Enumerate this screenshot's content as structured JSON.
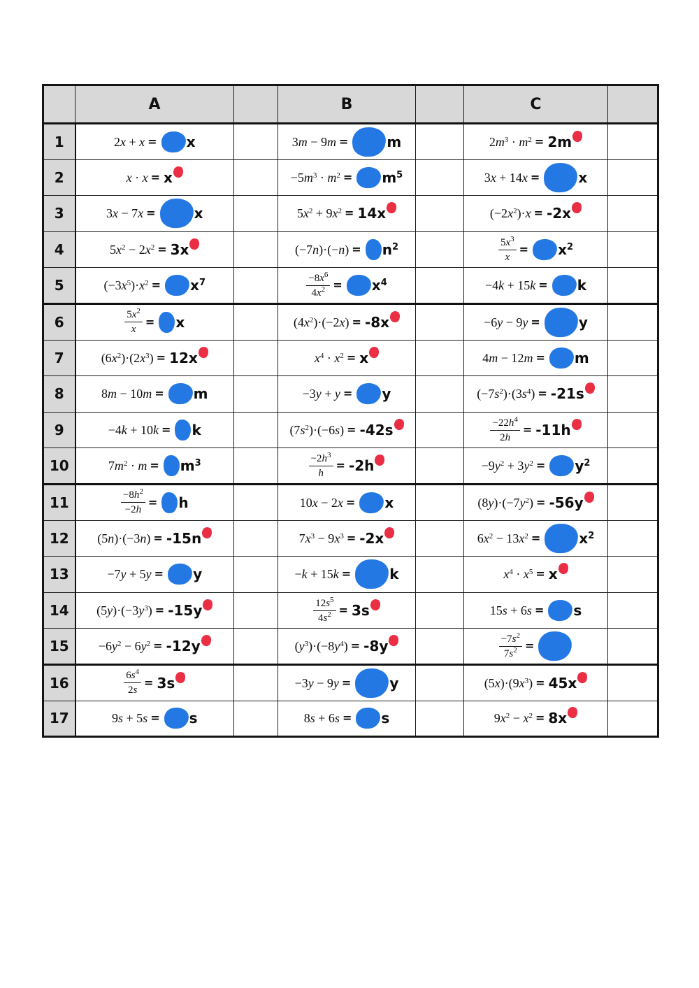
{
  "symbols": {
    "equals": "="
  },
  "colors": {
    "blob_blue": "#2478e4",
    "dot_red": "#ea2f44",
    "header_bg": "#d8d8d8",
    "border": "#1b1b1b"
  },
  "table": {
    "columns": [
      "A",
      "B",
      "C"
    ],
    "row_count": 17,
    "rows": [
      {
        "n": "1",
        "cells": [
          {
            "col": "A",
            "expr": "2x + x",
            "pre": "",
            "blob": "m",
            "post": "x",
            "dot": false
          },
          {
            "col": "B",
            "expr": "3m − 9m",
            "pre": "",
            "blob": "l",
            "post": "m",
            "dot": false
          },
          {
            "col": "C",
            "expr": "2m^3 · m^2",
            "pre": "2m",
            "blob": null,
            "post": "",
            "dot": true
          }
        ]
      },
      {
        "n": "2",
        "cells": [
          {
            "col": "A",
            "expr": "x · x",
            "pre": "x",
            "blob": null,
            "post": "",
            "dot": true
          },
          {
            "col": "B",
            "expr": "−5m^3 · m^2",
            "pre": "",
            "blob": "m",
            "post": "m^5",
            "dot": false
          },
          {
            "col": "C",
            "expr": "3x + 14x",
            "pre": "",
            "blob": "l",
            "post": "x",
            "dot": false
          }
        ]
      },
      {
        "n": "3",
        "cells": [
          {
            "col": "A",
            "expr": "3x − 7x",
            "pre": "",
            "blob": "l",
            "post": "x",
            "dot": false
          },
          {
            "col": "B",
            "expr": "5x^2 + 9x^2",
            "pre": "14x",
            "blob": null,
            "post": "",
            "dot": true
          },
          {
            "col": "C",
            "expr": "(−2x^2)·x",
            "pre": "-2x",
            "blob": null,
            "post": "",
            "dot": true
          }
        ]
      },
      {
        "n": "4",
        "cells": [
          {
            "col": "A",
            "expr": "5x^2 − 2x^2",
            "pre": "3x",
            "blob": null,
            "post": "",
            "dot": true
          },
          {
            "col": "B",
            "expr": "(−7n)·(−n)",
            "pre": "",
            "blob": "s",
            "post": "n^2",
            "dot": false
          },
          {
            "col": "C",
            "num": "5x^3",
            "den": "x",
            "pre": "",
            "blob": "m",
            "post": "x^2",
            "dot": false
          }
        ]
      },
      {
        "n": "5",
        "cells": [
          {
            "col": "A",
            "expr": "(−3x^5)·x^2",
            "pre": "",
            "blob": "m",
            "post": "x^7",
            "dot": false
          },
          {
            "col": "B",
            "num": "−8x^6",
            "den": "4x^2",
            "pre": "",
            "blob": "m",
            "post": "x^4",
            "dot": false
          },
          {
            "col": "C",
            "expr": "−4k + 15k",
            "pre": "",
            "blob": "m",
            "post": "k",
            "dot": false
          }
        ]
      },
      {
        "n": "6",
        "cells": [
          {
            "col": "A",
            "num": "5x^2",
            "den": "x",
            "pre": "",
            "blob": "s",
            "post": "x",
            "dot": false
          },
          {
            "col": "B",
            "expr": "(4x^2)·(−2x)",
            "pre": "-8x",
            "blob": null,
            "post": "",
            "dot": true
          },
          {
            "col": "C",
            "expr": "−6y − 9y",
            "pre": "",
            "blob": "l",
            "post": "y",
            "dot": false
          }
        ]
      },
      {
        "n": "7",
        "cells": [
          {
            "col": "A",
            "expr": "(6x^2)·(2x^3)",
            "pre": "12x",
            "blob": null,
            "post": "",
            "dot": true
          },
          {
            "col": "B",
            "expr": "x^4 · x^2",
            "pre": "x",
            "blob": null,
            "post": "",
            "dot": true
          },
          {
            "col": "C",
            "expr": "4m − 12m",
            "pre": "",
            "blob": "m",
            "post": "m",
            "dot": false
          }
        ]
      },
      {
        "n": "8",
        "cells": [
          {
            "col": "A",
            "expr": "8m − 10m",
            "pre": "",
            "blob": "m",
            "post": "m",
            "dot": false
          },
          {
            "col": "B",
            "expr": "−3y + y",
            "pre": "",
            "blob": "m",
            "post": "y",
            "dot": false
          },
          {
            "col": "C",
            "expr": "(−7s^2)·(3s^4)",
            "pre": "-21s",
            "blob": null,
            "post": "",
            "dot": true
          }
        ]
      },
      {
        "n": "9",
        "cells": [
          {
            "col": "A",
            "expr": "−4k + 10k",
            "pre": "",
            "blob": "s",
            "post": "k",
            "dot": false
          },
          {
            "col": "B",
            "expr": "(7s^2)·(−6s)",
            "pre": "-42s",
            "blob": null,
            "post": "",
            "dot": true
          },
          {
            "col": "C",
            "num": "−22h^4",
            "den": "2h",
            "pre": "-11h",
            "blob": null,
            "post": "",
            "dot": true
          }
        ]
      },
      {
        "n": "10",
        "cells": [
          {
            "col": "A",
            "expr": "7m^2 · m",
            "pre": "",
            "blob": "s",
            "post": "m^3",
            "dot": false
          },
          {
            "col": "B",
            "num": "−2h^3",
            "den": "h",
            "pre": "-2h",
            "blob": null,
            "post": "",
            "dot": true
          },
          {
            "col": "C",
            "expr": "−9y^2 + 3y^2",
            "pre": "",
            "blob": "m",
            "post": "y^2",
            "dot": false
          }
        ]
      },
      {
        "n": "11",
        "cells": [
          {
            "col": "A",
            "num": "−8h^2",
            "den": "−2h",
            "pre": "",
            "blob": "s",
            "post": "h",
            "dot": false
          },
          {
            "col": "B",
            "expr": "10x − 2x",
            "pre": "",
            "blob": "m",
            "post": "x",
            "dot": false
          },
          {
            "col": "C",
            "expr": "(8y)·(−7y^2)",
            "pre": "-56y",
            "blob": null,
            "post": "",
            "dot": true
          }
        ]
      },
      {
        "n": "12",
        "cells": [
          {
            "col": "A",
            "expr": "(5n)·(−3n)",
            "pre": "-15n",
            "blob": null,
            "post": "",
            "dot": true
          },
          {
            "col": "B",
            "expr": "7x^3 − 9x^3",
            "pre": "-2x",
            "blob": null,
            "post": "",
            "dot": true
          },
          {
            "col": "C",
            "expr": "6x^2 − 13x^2",
            "pre": "",
            "blob": "l",
            "post": "x^2",
            "dot": false
          }
        ]
      },
      {
        "n": "13",
        "cells": [
          {
            "col": "A",
            "expr": "−7y + 5y",
            "pre": "",
            "blob": "m",
            "post": "y",
            "dot": false
          },
          {
            "col": "B",
            "expr": "−k + 15k",
            "pre": "",
            "blob": "l",
            "post": "k",
            "dot": false
          },
          {
            "col": "C",
            "expr": "x^4 · x^5",
            "pre": "x",
            "blob": null,
            "post": "",
            "dot": true
          }
        ]
      },
      {
        "n": "14",
        "cells": [
          {
            "col": "A",
            "expr": "(5y)·(−3y^3)",
            "pre": "-15y",
            "blob": null,
            "post": "",
            "dot": true
          },
          {
            "col": "B",
            "num": "12s^5",
            "den": "4s^2",
            "pre": "3s",
            "blob": null,
            "post": "",
            "dot": true
          },
          {
            "col": "C",
            "expr": "15s + 6s",
            "pre": "",
            "blob": "m",
            "post": "s",
            "dot": false
          }
        ]
      },
      {
        "n": "15",
        "cells": [
          {
            "col": "A",
            "expr": "−6y^2 − 6y^2",
            "pre": "-12y",
            "blob": null,
            "post": "",
            "dot": true
          },
          {
            "col": "B",
            "expr": "(y^3)·(−8y^4)",
            "pre": "-8y",
            "blob": null,
            "post": "",
            "dot": true
          },
          {
            "col": "C",
            "num": "−7s^2",
            "den": "7s^2",
            "pre": "",
            "blob": "l",
            "post": "",
            "dot": false
          }
        ]
      },
      {
        "n": "16",
        "cells": [
          {
            "col": "A",
            "num": "6s^4",
            "den": "2s",
            "pre": "3s",
            "blob": null,
            "post": "",
            "dot": true
          },
          {
            "col": "B",
            "expr": "−3y − 9y",
            "pre": "",
            "blob": "l",
            "post": "y",
            "dot": false
          },
          {
            "col": "C",
            "expr": "(5x)·(9x^3)",
            "pre": "45x",
            "blob": null,
            "post": "",
            "dot": true
          }
        ]
      },
      {
        "n": "17",
        "cells": [
          {
            "col": "A",
            "expr": "9s + 5s",
            "pre": "",
            "blob": "m",
            "post": "s",
            "dot": false
          },
          {
            "col": "B",
            "expr": "8s + 6s",
            "pre": "",
            "blob": "m",
            "post": "s",
            "dot": false
          },
          {
            "col": "C",
            "expr": "9x^2 − x^2",
            "pre": "8x",
            "blob": null,
            "post": "",
            "dot": true
          }
        ]
      }
    ]
  }
}
